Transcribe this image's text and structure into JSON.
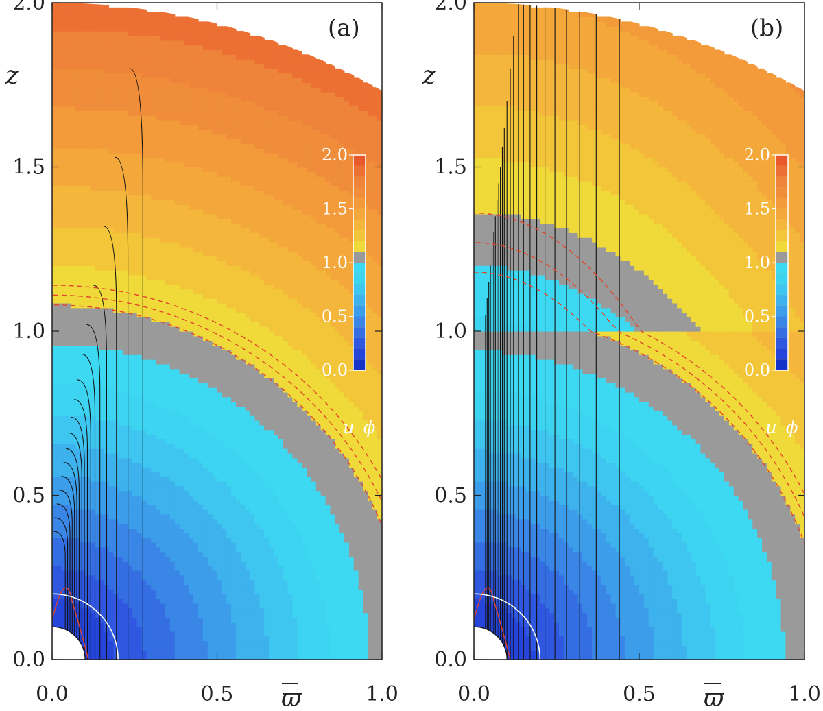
{
  "chart_data": [
    {
      "type": "heatmap",
      "panel_label": "(a)",
      "xlabel": "ϖ",
      "ylabel": "z",
      "xlim": [
        0.0,
        1.0
      ],
      "ylim": [
        0.0,
        2.0
      ],
      "x_ticks": [
        "0.0",
        "0.5",
        "1.0"
      ],
      "y_ticks": [
        "0.0",
        "0.5",
        "1.0",
        "1.5",
        "2.0"
      ],
      "domain_radius": 2.0,
      "inner_radius": 0.1,
      "white_circle_radius": 0.2,
      "field": {
        "quantity": "u_phi",
        "structure": "concentric",
        "r_equal_one": 1.02,
        "r_scale_inner": 0.935,
        "shell_width": 0.12,
        "z_scale_upper": 1.0
      },
      "field_lines_x": [
        0.04,
        0.047,
        0.054,
        0.061,
        0.068,
        0.075,
        0.082,
        0.09,
        0.098,
        0.107,
        0.117,
        0.13,
        0.145,
        0.165,
        0.195,
        0.23,
        0.275
      ],
      "colorbar": {
        "label": "u_ϕ",
        "ticks": [
          "0.0",
          "0.5",
          "1.0",
          "1.5",
          "2.0"
        ],
        "range": [
          0.0,
          2.0
        ]
      }
    },
    {
      "type": "heatmap",
      "panel_label": "(b)",
      "xlabel": "ϖ",
      "ylabel": "z",
      "xlim": [
        0.0,
        1.0
      ],
      "ylim": [
        0.0,
        2.0
      ],
      "x_ticks": [
        "0.0",
        "0.5",
        "1.0"
      ],
      "y_ticks": [
        "0.0",
        "0.5",
        "1.0",
        "1.5",
        "2.0"
      ],
      "domain_radius": 2.0,
      "inner_radius": 0.1,
      "white_circle_radius": 0.2,
      "field": {
        "quantity": "u_phi",
        "structure": "cylindrical_jet",
        "r_equal_one": 1.0,
        "r_scale_inner": 0.91,
        "shell_width": 0.12,
        "z_scale_upper": 1.35
      },
      "field_lines_x": [
        0.035,
        0.04,
        0.045,
        0.05,
        0.055,
        0.06,
        0.065,
        0.07,
        0.075,
        0.08,
        0.086,
        0.092,
        0.1,
        0.11,
        0.12,
        0.135,
        0.15,
        0.17,
        0.19,
        0.215,
        0.245,
        0.28,
        0.32,
        0.37,
        0.44
      ],
      "colorbar": {
        "label": "u_ϕ",
        "ticks": [
          "0.0",
          "0.5",
          "1.0",
          "1.5",
          "2.0"
        ],
        "range": [
          0.0,
          2.0
        ]
      }
    }
  ]
}
